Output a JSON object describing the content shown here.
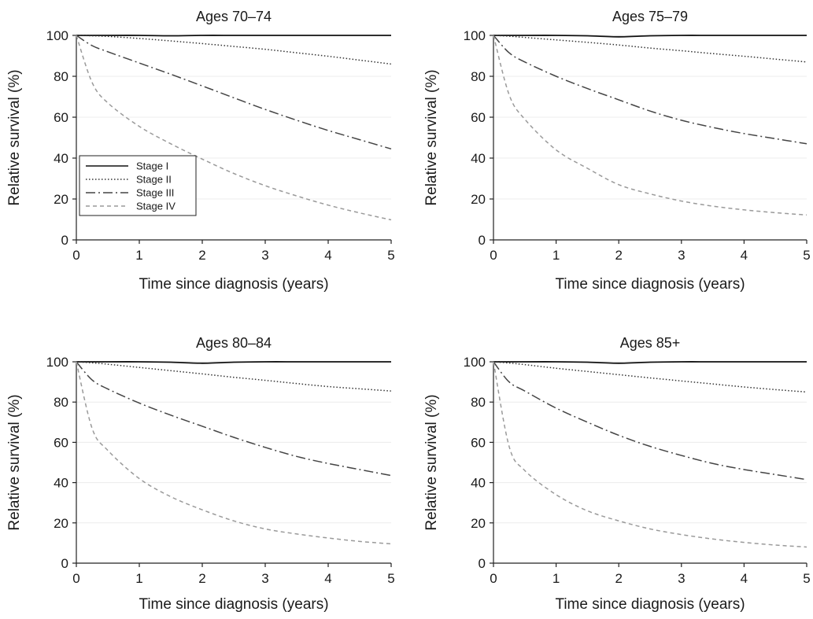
{
  "figure": {
    "background": "#ffffff"
  },
  "legend": {
    "placement": "bottom-left of first panel",
    "entries": [
      {
        "label": "Stage I",
        "series_index": 0
      },
      {
        "label": "Stage II",
        "series_index": 1
      },
      {
        "label": "Stage III",
        "series_index": 2
      },
      {
        "label": "Stage IV",
        "series_index": 3
      }
    ]
  },
  "series_styles": [
    {
      "color": "#111111",
      "dash": "solid"
    },
    {
      "color": "#333333",
      "dash": "dotted"
    },
    {
      "color": "#444444",
      "dash": "dash-dot"
    },
    {
      "color": "#9a9a9a",
      "dash": "dashed"
    }
  ],
  "chart_data": [
    {
      "type": "line",
      "title": "Ages 70–74",
      "xlabel": "Time since diagnosis (years)",
      "ylabel": "Relative survival (%)",
      "xlim": [
        0,
        5
      ],
      "ylim": [
        0,
        100
      ],
      "xticks": [
        0,
        1,
        2,
        3,
        4,
        5
      ],
      "yticks": [
        0,
        20,
        40,
        60,
        80,
        100
      ],
      "grid": "horizontal",
      "legend": true,
      "x": [
        0,
        0.25,
        0.5,
        1,
        1.5,
        2,
        2.5,
        3,
        3.5,
        4,
        4.5,
        5
      ],
      "series": [
        {
          "name": "Stage I",
          "values": [
            100,
            100,
            100,
            100,
            99.8,
            100,
            100,
            100,
            100,
            100,
            100,
            100
          ]
        },
        {
          "name": "Stage II",
          "values": [
            100,
            99.8,
            99.5,
            98.5,
            97.3,
            96,
            94.6,
            93.2,
            91.5,
            89.8,
            87.9,
            86
          ]
        },
        {
          "name": "Stage III",
          "values": [
            100,
            95,
            92,
            86.5,
            81,
            75.3,
            69.5,
            63.8,
            58.5,
            53.5,
            49,
            44.5
          ]
        },
        {
          "name": "Stage IV",
          "values": [
            100,
            77,
            67,
            55.5,
            47,
            39.5,
            32.5,
            26.5,
            21.5,
            17,
            13.2,
            9.8
          ]
        }
      ]
    },
    {
      "type": "line",
      "title": "Ages 75–79",
      "xlabel": "Time since diagnosis (years)",
      "ylabel": "Relative survival (%)",
      "xlim": [
        0,
        5
      ],
      "ylim": [
        0,
        100
      ],
      "xticks": [
        0,
        1,
        2,
        3,
        4,
        5
      ],
      "yticks": [
        0,
        20,
        40,
        60,
        80,
        100
      ],
      "grid": "horizontal",
      "legend": false,
      "x": [
        0,
        0.25,
        0.5,
        1,
        1.5,
        2,
        2.5,
        3,
        3.5,
        4,
        4.5,
        5
      ],
      "series": [
        {
          "name": "Stage I",
          "values": [
            100,
            100,
            100,
            100,
            99.8,
            99.3,
            99.8,
            100,
            100,
            100,
            100,
            100
          ]
        },
        {
          "name": "Stage II",
          "values": [
            100,
            99.6,
            99,
            97.8,
            96.6,
            95.3,
            93.8,
            92.5,
            91.1,
            89.8,
            88.4,
            87
          ]
        },
        {
          "name": "Stage III",
          "values": [
            100,
            91.5,
            87,
            80,
            74,
            68.5,
            63,
            58.5,
            55,
            52,
            49.5,
            47
          ]
        },
        {
          "name": "Stage IV",
          "values": [
            100,
            71,
            59,
            44,
            35,
            27,
            22.5,
            19,
            16.5,
            14.7,
            13.3,
            12.2
          ]
        }
      ]
    },
    {
      "type": "line",
      "title": "Ages 80–84",
      "xlabel": "Time since diagnosis (years)",
      "ylabel": "Relative survival (%)",
      "xlim": [
        0,
        5
      ],
      "ylim": [
        0,
        100
      ],
      "xticks": [
        0,
        1,
        2,
        3,
        4,
        5
      ],
      "yticks": [
        0,
        20,
        40,
        60,
        80,
        100
      ],
      "grid": "horizontal",
      "legend": false,
      "x": [
        0,
        0.25,
        0.5,
        1,
        1.5,
        2,
        2.5,
        3,
        3.5,
        4,
        4.5,
        5
      ],
      "series": [
        {
          "name": "Stage I",
          "values": [
            100,
            100,
            100,
            100,
            99.8,
            99.3,
            99.8,
            100,
            100,
            100,
            100,
            100
          ]
        },
        {
          "name": "Stage II",
          "values": [
            100,
            99.5,
            98.8,
            97.2,
            95.6,
            94,
            92.3,
            90.8,
            89.2,
            87.7,
            86.6,
            85.5
          ]
        },
        {
          "name": "Stage III",
          "values": [
            100,
            91,
            86.5,
            79.5,
            73.5,
            68,
            62.5,
            57.5,
            53,
            49.5,
            46.5,
            43.5
          ]
        },
        {
          "name": "Stage IV",
          "values": [
            100,
            67,
            56,
            42,
            33,
            26.5,
            21,
            17,
            14.5,
            12.5,
            10.8,
            9.6
          ]
        }
      ]
    },
    {
      "type": "line",
      "title": "Ages 85+",
      "xlabel": "Time since diagnosis (years)",
      "ylabel": "Relative survival (%)",
      "xlim": [
        0,
        5
      ],
      "ylim": [
        0,
        100
      ],
      "xticks": [
        0,
        1,
        2,
        3,
        4,
        5
      ],
      "yticks": [
        0,
        20,
        40,
        60,
        80,
        100
      ],
      "grid": "horizontal",
      "legend": false,
      "x": [
        0,
        0.25,
        0.5,
        1,
        1.5,
        2,
        2.5,
        3,
        3.5,
        4,
        4.5,
        5
      ],
      "series": [
        {
          "name": "Stage I",
          "values": [
            100,
            100,
            100,
            100,
            99.8,
            99.3,
            99.8,
            100,
            100,
            100,
            100,
            100
          ]
        },
        {
          "name": "Stage II",
          "values": [
            100,
            99.4,
            98.6,
            96.8,
            95.2,
            93.6,
            92,
            90.5,
            89,
            87.5,
            86.2,
            85
          ]
        },
        {
          "name": "Stage III",
          "values": [
            100,
            90,
            85.5,
            77,
            70,
            63.5,
            58,
            53.5,
            49.5,
            46.5,
            44,
            41.5
          ]
        },
        {
          "name": "Stage IV",
          "values": [
            100,
            58,
            46,
            34,
            26,
            21,
            17,
            14.2,
            12,
            10.3,
            9,
            8
          ]
        }
      ]
    }
  ]
}
